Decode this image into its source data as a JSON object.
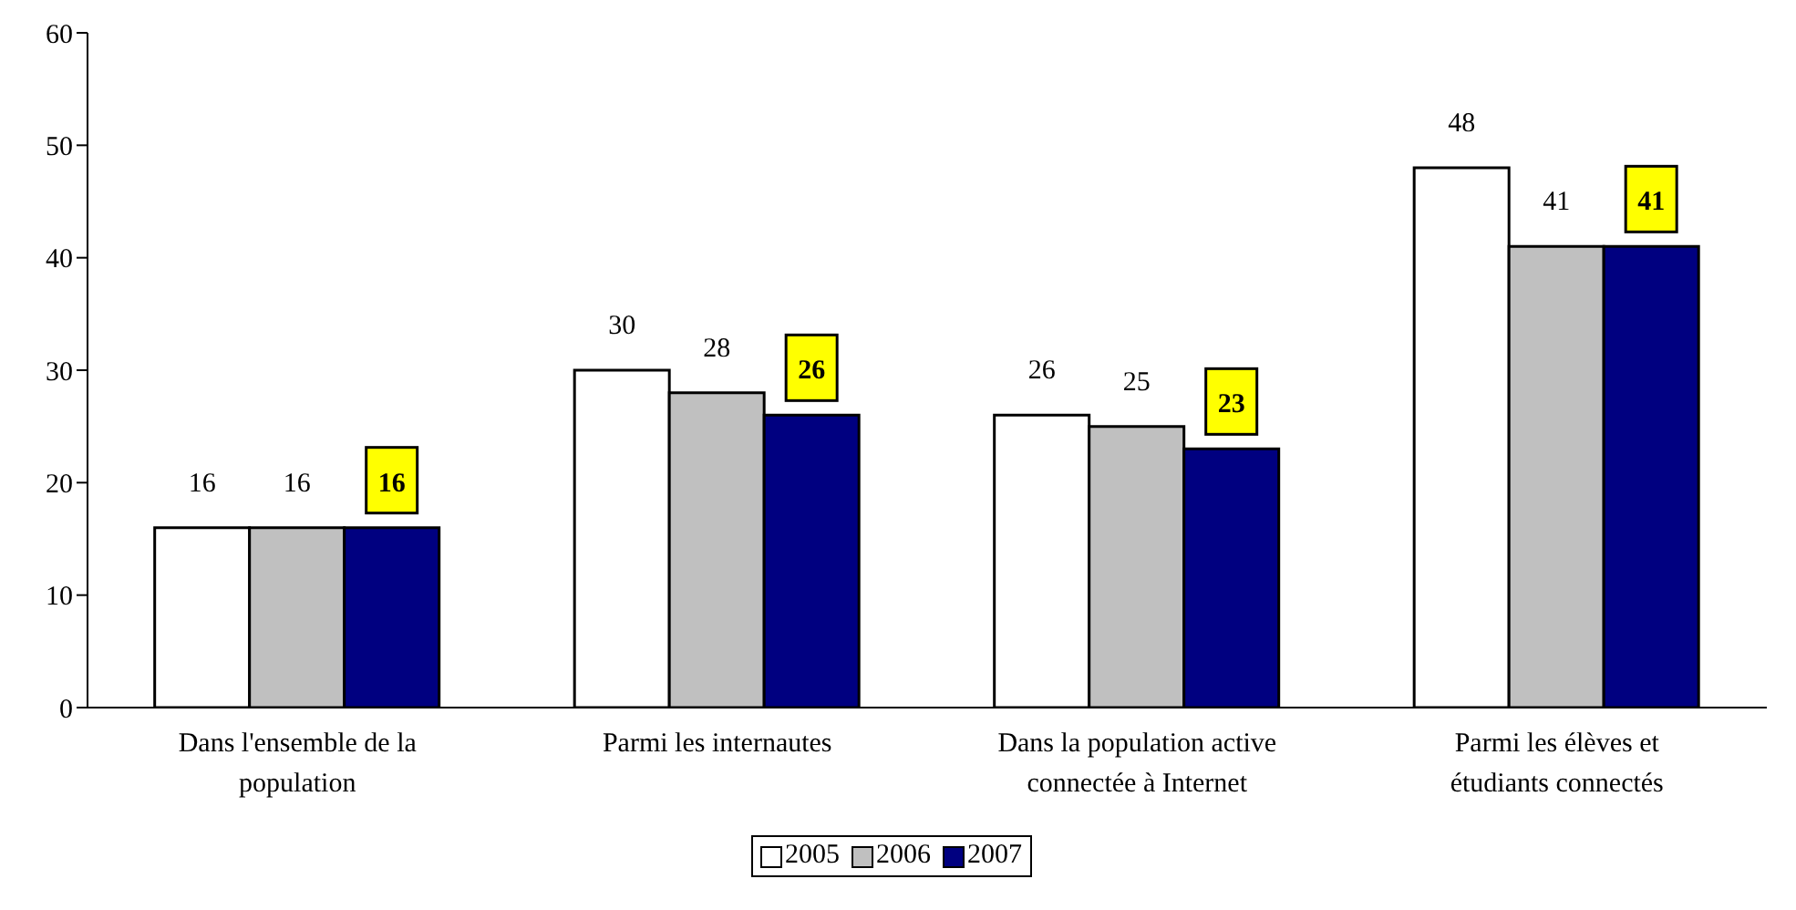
{
  "chart_data": {
    "type": "bar",
    "categories": [
      "Dans l'ensemble de la population",
      "Parmi les internautes",
      "Dans la population active connectée à Internet",
      "Parmi les élèves et étudiants connectés"
    ],
    "series": [
      {
        "name": "2005",
        "color": "#ffffff",
        "values": [
          16,
          30,
          26,
          48
        ]
      },
      {
        "name": "2006",
        "color": "#c0c0c0",
        "values": [
          16,
          28,
          25,
          41
        ]
      },
      {
        "name": "2007",
        "color": "#000080",
        "values": [
          16,
          26,
          23,
          41
        ]
      }
    ],
    "ylim": [
      0,
      60
    ],
    "yticks": [
      0,
      10,
      20,
      30,
      40,
      50,
      60
    ],
    "data_labels": true,
    "legend": "bottom",
    "grid": false
  }
}
